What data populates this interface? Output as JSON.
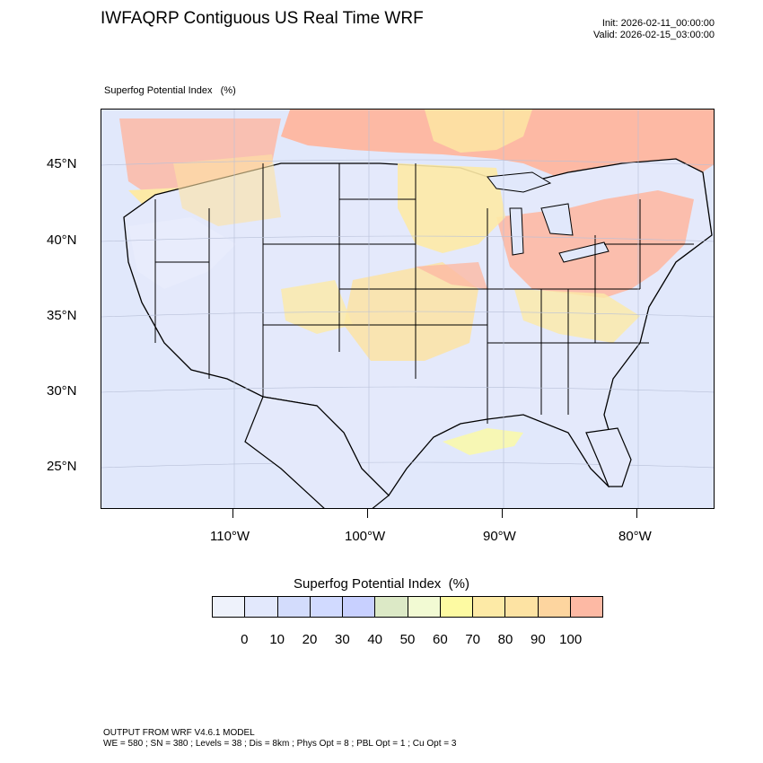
{
  "title": "IWFAQRP Contiguous US Real Time WRF",
  "init_label": "Init: 2026-02-11_00:00:00",
  "valid_label": "Valid: 2026-02-15_03:00:00",
  "field_title": "Superfog Potential Index   (%)",
  "lat_labels": [
    "45°N",
    "40°N",
    "35°N",
    "30°N",
    "25°N"
  ],
  "lon_labels": [
    "110°W",
    "100°W",
    "90°W",
    "80°W"
  ],
  "colorbar": {
    "title": "Superfog Potential Index  (%)",
    "ticks": [
      "0",
      "10",
      "20",
      "30",
      "40",
      "50",
      "60",
      "70",
      "80",
      "90",
      "100"
    ],
    "colors": [
      "#eef2fb",
      "#e2e8fc",
      "#d3dcfc",
      "#d1daff",
      "#c8d0ff",
      "#dce9c6",
      "#f2fad3",
      "#fdfaa2",
      "#fdeaa6",
      "#fde3a3",
      "#fdd59f",
      "#fdb9a4"
    ]
  },
  "footer_line1": "OUTPUT FROM WRF V4.6.1 MODEL",
  "footer_line2": "WE = 580 ; SN = 380 ; Levels = 38 ; Dis = 8km ; Phys Opt = 8 ; PBL Opt = 1 ; Cu Opt = 3"
}
